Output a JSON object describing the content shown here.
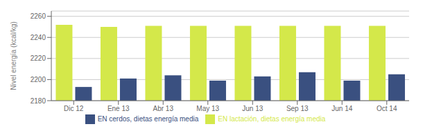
{
  "chart_data": {
    "type": "bar",
    "categories": [
      "Dic 12",
      "Ene 13",
      "Abr 13",
      "May 13",
      "Jun 13",
      "Sep 13",
      "Jun 14",
      "Oct 14"
    ],
    "series": [
      {
        "name": "EN lactación, dietas energía media",
        "color": "#d4e84a",
        "values": [
          2252,
          2250,
          2251,
          2251,
          2251,
          2251,
          2251,
          2251
        ]
      },
      {
        "name": "EN cerdos, dietas energía media",
        "color": "#3a5080",
        "values": [
          2193,
          2201,
          2204,
          2199,
          2203,
          2207,
          2199,
          2205
        ]
      }
    ],
    "ylabel": "Nivel energía (kcal/kg)",
    "ylim": [
      2180,
      2265
    ],
    "yticks": [
      2180,
      2200,
      2220,
      2240,
      2260
    ],
    "grid": true,
    "legend": "bottom"
  }
}
